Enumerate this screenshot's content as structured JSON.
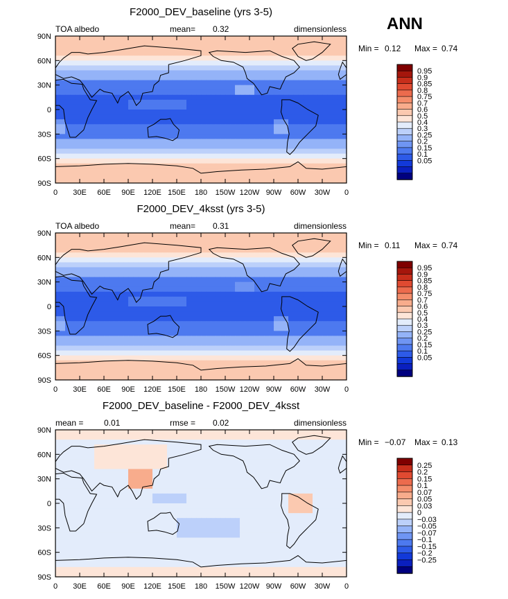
{
  "season": "ANN",
  "colors": {
    "abs_scale": [
      "#00007f",
      "#0a1fbf",
      "#1239d9",
      "#2d5ae8",
      "#4d79ef",
      "#6f95f3",
      "#94b3f8",
      "#bcd0fa",
      "#e3ecfb",
      "#fde5d8",
      "#fbc9b0",
      "#f8ac8c",
      "#f48d6b",
      "#ec6b4d",
      "#e04a31",
      "#c72e1b",
      "#a5160c",
      "#7f0000"
    ],
    "diff_scale": [
      "#00007f",
      "#0a1fbf",
      "#1239d9",
      "#2d5ae8",
      "#4d79ef",
      "#6f95f3",
      "#94b3f8",
      "#bcd0fa",
      "#e3ecfb",
      "#fde5d8",
      "#fbc9b0",
      "#f8ac8c",
      "#f48d6b",
      "#ec6b4d",
      "#e04a31",
      "#c72e1b",
      "#7f0000"
    ]
  },
  "panels": [
    {
      "id": "baseline",
      "title": "F2000_DEV_baseline (yrs 3-5)",
      "left_label": "TOA albedo",
      "center_label": "mean=",
      "center_value": "0.32",
      "right_label": "dimensionless",
      "min_label": "Min =",
      "min_value": "0.12",
      "max_label": "Max =",
      "max_value": "0.74",
      "colorbar_ticks": [
        "0.95",
        "0.9",
        "0.85",
        "0.8",
        "0.75",
        "0.7",
        "0.6",
        "0.5",
        "0.4",
        "0.3",
        "0.25",
        "0.2",
        "0.15",
        "0.1",
        "0.05"
      ]
    },
    {
      "id": "4ksst",
      "title": "F2000_DEV_4ksst (yrs 3-5)",
      "left_label": "TOA albedo",
      "center_label": "mean=",
      "center_value": "0.31",
      "right_label": "dimensionless",
      "min_label": "Min =",
      "min_value": "0.11",
      "max_label": "Max =",
      "max_value": "0.74",
      "colorbar_ticks": [
        "0.95",
        "0.9",
        "0.85",
        "0.8",
        "0.75",
        "0.7",
        "0.6",
        "0.5",
        "0.4",
        "0.3",
        "0.25",
        "0.2",
        "0.15",
        "0.1",
        "0.05"
      ]
    },
    {
      "id": "diff",
      "title": "F2000_DEV_baseline - F2000_DEV_4ksst",
      "left_label": "mean =",
      "left_value": "0.01",
      "center_label": "rmse =",
      "center_value": "0.02",
      "right_label": "dimensionless",
      "min_label": "Min =",
      "min_value": "−0.07",
      "max_label": "Max =",
      "max_value": "0.13",
      "colorbar_ticks": [
        "0.25",
        "0.2",
        "0.15",
        "0.1",
        "0.07",
        "0.05",
        "0.03",
        "0",
        "−0.03",
        "−0.05",
        "−0.07",
        "−0.1",
        "−0.15",
        "−0.2",
        "−0.25"
      ]
    }
  ],
  "axes": {
    "lat_ticks": [
      "90N",
      "60N",
      "30N",
      "0",
      "30S",
      "60S",
      "90S"
    ],
    "lon_ticks": [
      "0",
      "30E",
      "60E",
      "90E",
      "120E",
      "150E",
      "180",
      "150W",
      "120W",
      "90W",
      "60W",
      "30W",
      "0"
    ]
  },
  "chart_data": [
    {
      "type": "heatmap",
      "title": "F2000_DEV_baseline (yrs 3-5)",
      "variable": "TOA albedo",
      "units": "dimensionless",
      "mean": 0.32,
      "min": 0.12,
      "max": 0.74,
      "x": [
        "0",
        "30E",
        "60E",
        "90E",
        "120E",
        "150E",
        "180",
        "150W",
        "120W",
        "90W",
        "60W",
        "30W",
        "0"
      ],
      "y": [
        "90N",
        "60N",
        "30N",
        "0",
        "30S",
        "60S",
        "90S"
      ],
      "zonal_profile": {
        "lat": [
          90,
          60,
          30,
          0,
          -30,
          -60,
          -90
        ],
        "albedo": [
          0.7,
          0.45,
          0.28,
          0.2,
          0.25,
          0.4,
          0.7
        ]
      },
      "levels": [
        0.05,
        0.1,
        0.15,
        0.2,
        0.25,
        0.3,
        0.4,
        0.5,
        0.6,
        0.7,
        0.75,
        0.8,
        0.85,
        0.9,
        0.95
      ]
    },
    {
      "type": "heatmap",
      "title": "F2000_DEV_4ksst (yrs 3-5)",
      "variable": "TOA albedo",
      "units": "dimensionless",
      "mean": 0.31,
      "min": 0.11,
      "max": 0.74,
      "x": [
        "0",
        "30E",
        "60E",
        "90E",
        "120E",
        "150E",
        "180",
        "150W",
        "120W",
        "90W",
        "60W",
        "30W",
        "0"
      ],
      "y": [
        "90N",
        "60N",
        "30N",
        "0",
        "30S",
        "60S",
        "90S"
      ],
      "zonal_profile": {
        "lat": [
          90,
          60,
          30,
          0,
          -30,
          -60,
          -90
        ],
        "albedo": [
          0.68,
          0.42,
          0.27,
          0.2,
          0.24,
          0.37,
          0.7
        ]
      },
      "levels": [
        0.05,
        0.1,
        0.15,
        0.2,
        0.25,
        0.3,
        0.4,
        0.5,
        0.6,
        0.7,
        0.75,
        0.8,
        0.85,
        0.9,
        0.95
      ]
    },
    {
      "type": "heatmap",
      "title": "F2000_DEV_baseline - F2000_DEV_4ksst",
      "units": "dimensionless",
      "mean": 0.01,
      "rmse": 0.02,
      "min": -0.07,
      "max": 0.13,
      "x": [
        "0",
        "30E",
        "60E",
        "90E",
        "120E",
        "150E",
        "180",
        "150W",
        "120W",
        "90W",
        "60W",
        "30W",
        "0"
      ],
      "y": [
        "90N",
        "60N",
        "30N",
        "0",
        "30S",
        "60S",
        "90S"
      ],
      "zonal_profile": {
        "lat": [
          90,
          60,
          30,
          0,
          -30,
          -60,
          -90
        ],
        "albedo_diff": [
          0.02,
          0.02,
          0.01,
          0.0,
          0.01,
          0.02,
          0.0
        ]
      },
      "levels": [
        -0.25,
        -0.2,
        -0.15,
        -0.1,
        -0.07,
        -0.05,
        -0.03,
        0,
        0.03,
        0.05,
        0.07,
        0.1,
        0.15,
        0.2,
        0.25
      ]
    }
  ]
}
